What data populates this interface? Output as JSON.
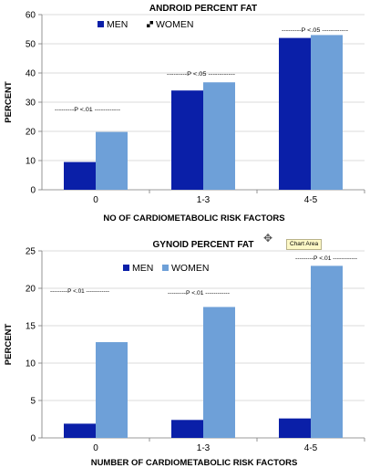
{
  "colors": {
    "men": "#0a1fa8",
    "women": "#6ea0d8"
  },
  "overlay": {
    "cursor_icon": "move-cursor-icon",
    "tooltip": "Chart Area"
  },
  "chart_data": [
    {
      "type": "bar",
      "title": "ANDROID PERCENT FAT",
      "xlabel": "NO OF CARDIOMETABOLIC RISK FACTORS",
      "ylabel": "PERCENT",
      "ylim": [
        0,
        60
      ],
      "yticks": [
        0,
        10,
        20,
        30,
        40,
        50,
        60
      ],
      "grid": true,
      "legend": "top-left",
      "categories": [
        "0",
        "1-3",
        "4-5"
      ],
      "series": [
        {
          "name": "MEN",
          "values": [
            9.5,
            34,
            52
          ]
        },
        {
          "name": "WOMEN",
          "values": [
            19.8,
            36.8,
            53
          ]
        }
      ],
      "annotations": [
        "---------P <.01 ------------",
        "---------P <.05 ------------",
        "---------P <.05 ------------"
      ]
    },
    {
      "type": "bar",
      "title": "GYNOID PERCENT FAT",
      "xlabel": "NUMBER OF CARDIOMETABOLIC RISK FACTORS",
      "ylabel": "PERCENT",
      "ylim": [
        0,
        25
      ],
      "yticks": [
        0,
        5,
        10,
        15,
        20,
        25
      ],
      "grid": true,
      "legend": "top-center",
      "categories": [
        "0",
        "1-3",
        "4-5"
      ],
      "series": [
        {
          "name": "MEN",
          "values": [
            1.9,
            2.4,
            2.6
          ]
        },
        {
          "name": "WOMEN",
          "values": [
            12.8,
            17.5,
            23
          ]
        }
      ],
      "annotations": [
        "---------P <.01 ------------",
        "---------P <.01 ------------",
        "---------P <.01 ------------"
      ]
    }
  ]
}
